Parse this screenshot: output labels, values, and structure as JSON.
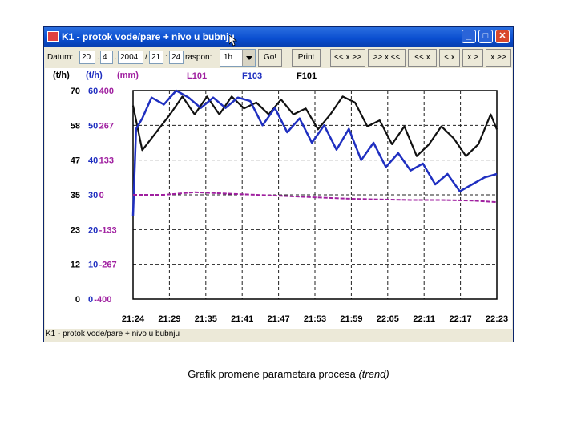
{
  "window": {
    "title": "K1 - protok vode/pare + nivo u bubnju",
    "minimize": "_",
    "maximize": "□",
    "close": "✕"
  },
  "toolbar": {
    "date_label": "Datum:",
    "day": "20",
    "sep1": ".",
    "month": "4",
    "sep2": ".",
    "year": "2004",
    "slash": "/",
    "hour": "21",
    "colon": ":",
    "minute": "24",
    "range_label": "raspon:",
    "range_value": "1h",
    "go": "Go!",
    "print": "Print",
    "nav_buttons": [
      "<< x >>",
      ">> x <<",
      "<< x",
      "< x",
      "x >",
      "x >>"
    ]
  },
  "chart_data": {
    "type": "line",
    "units": [
      "(t/h)",
      "(t/h)",
      "(mm)"
    ],
    "axis_ticks": {
      "black": [
        "70",
        "58",
        "47",
        "35",
        "23",
        "12",
        "0"
      ],
      "blue": [
        "60",
        "50",
        "40",
        "30",
        "20",
        "10",
        "0"
      ],
      "purple": [
        "400",
        "267",
        "133",
        "0",
        "-133",
        "-267",
        "-400"
      ]
    },
    "legend": [
      "L101",
      "F103",
      "F101"
    ],
    "x_ticks": [
      "21:24",
      "21:29",
      "21:35",
      "21:41",
      "21:47",
      "21:53",
      "21:59",
      "22:05",
      "22:11",
      "22:17",
      "22:23"
    ],
    "series": [
      {
        "name": "F101",
        "color": "#111111",
        "axis": "t/h left (0-70)",
        "x_minutes": [
          0,
          1.5,
          3,
          6,
          8,
          10,
          12,
          14,
          16,
          18,
          20,
          22,
          24,
          26,
          28,
          30,
          32,
          34,
          36,
          38,
          40,
          42,
          44,
          46,
          48,
          50,
          52,
          54,
          56,
          58,
          59
        ],
        "values": [
          65,
          50,
          54,
          62,
          68,
          62,
          68,
          62,
          68,
          64,
          66,
          62,
          67,
          62,
          64,
          57,
          62,
          68,
          66,
          58,
          60,
          52,
          58,
          48,
          52,
          58,
          54,
          48,
          52,
          62,
          57
        ]
      },
      {
        "name": "F103",
        "color": "#1f2fc0",
        "axis": "t/h middle (0-60)",
        "x_minutes": [
          0,
          0.5,
          1.5,
          3,
          5,
          7,
          9,
          11,
          13,
          15,
          17,
          19,
          21,
          23,
          25,
          27,
          29,
          31,
          33,
          35,
          37,
          39,
          41,
          43,
          45,
          47,
          49,
          51,
          53,
          55,
          57,
          59
        ],
        "values": [
          24,
          49,
          52,
          58,
          56,
          60,
          58,
          55,
          58,
          55,
          58,
          57,
          50,
          55,
          48,
          52,
          45,
          50,
          43,
          49,
          40,
          45,
          38,
          42,
          37,
          39,
          33,
          36,
          31,
          33,
          35,
          36
        ]
      },
      {
        "name": "L101",
        "color": "#a020a0",
        "axis": "mm right (-400..400)",
        "x_minutes": [
          0,
          5,
          10,
          15,
          20,
          25,
          30,
          35,
          40,
          45,
          50,
          55,
          59
        ],
        "values": [
          0,
          0,
          10,
          5,
          0,
          -5,
          -10,
          -15,
          -18,
          -20,
          -20,
          -22,
          -28
        ]
      }
    ]
  },
  "status": {
    "text": "K1 - protok vode/pare + nivo u bubnju"
  },
  "caption": {
    "text": "Grafik promene parametara procesa",
    "italic": "(trend)"
  }
}
